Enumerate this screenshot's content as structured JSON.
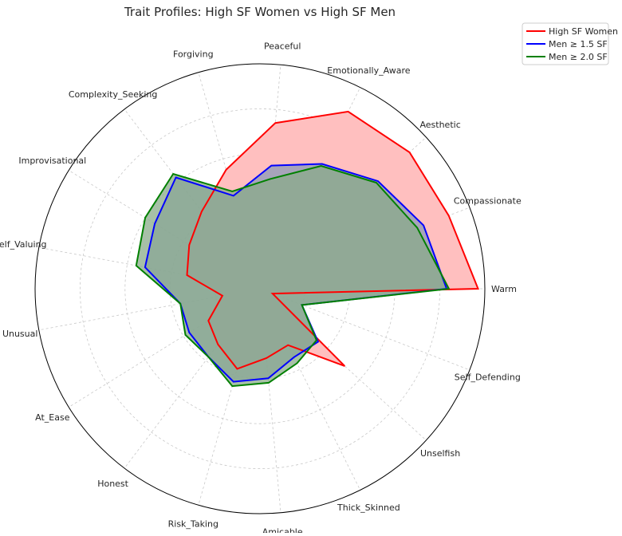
{
  "chart_data": {
    "type": "radar",
    "title": "Trait Profiles: High SF Women vs High SF Men",
    "categories": [
      "Warm",
      "Compassionate",
      "Aesthetic",
      "Emotionally_Aware",
      "Peaceful",
      "Forgiving",
      "Complexity_Seeking",
      "Improvisational",
      "Self_Valuing",
      "Unusual",
      "At_Ease",
      "Honest",
      "Risk_Taking",
      "Amicable",
      "Thick_Skinned",
      "Unselfish",
      "Self_Defending"
    ],
    "rlim": [
      0,
      1
    ],
    "grid": true,
    "legend_position": "top-right",
    "series": [
      {
        "name": "High SF Women",
        "color": "#ff0000",
        "fill": "#ffbfbf",
        "values": [
          0.97,
          0.9,
          0.9,
          0.88,
          0.74,
          0.55,
          0.43,
          0.37,
          0.33,
          0.17,
          0.27,
          0.31,
          0.37,
          0.31,
          0.28,
          0.51,
          0.06
        ]
      },
      {
        "name": "Men ≥ 1.5 SF",
        "color": "#0000ff",
        "fill": "#8a9bb8",
        "values": [
          0.83,
          0.78,
          0.71,
          0.62,
          0.55,
          0.43,
          0.62,
          0.55,
          0.52,
          0.36,
          0.37,
          0.38,
          0.43,
          0.4,
          0.34,
          0.35,
          0.2
        ]
      },
      {
        "name": "Men ≥ 2.0 SF",
        "color": "#008000",
        "fill": "#8aab8a",
        "values": [
          0.84,
          0.75,
          0.7,
          0.61,
          0.49,
          0.45,
          0.64,
          0.6,
          0.56,
          0.36,
          0.39,
          0.38,
          0.45,
          0.42,
          0.37,
          0.34,
          0.2
        ]
      }
    ]
  }
}
